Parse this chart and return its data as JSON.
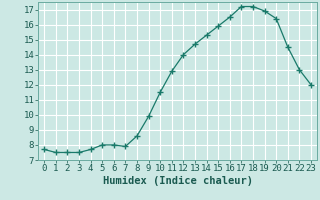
{
  "xlabel": "Humidex (Indice chaleur)",
  "x": [
    0,
    1,
    2,
    3,
    4,
    5,
    6,
    7,
    8,
    9,
    10,
    11,
    12,
    13,
    14,
    15,
    16,
    17,
    18,
    19,
    20,
    21,
    22,
    23
  ],
  "y": [
    7.7,
    7.5,
    7.5,
    7.5,
    7.7,
    8.0,
    8.0,
    7.9,
    8.6,
    9.9,
    11.5,
    12.9,
    14.0,
    14.7,
    15.3,
    15.9,
    16.5,
    17.2,
    17.2,
    16.9,
    16.4,
    14.5,
    13.0,
    12.0
  ],
  "line_color": "#1a7a6a",
  "marker": "+",
  "marker_size": 4,
  "bg_color": "#cce8e4",
  "grid_color": "#ffffff",
  "spine_color": "#6aaba0",
  "tick_color": "#1a5a50",
  "ylim": [
    7,
    17.5
  ],
  "xlim": [
    -0.5,
    23.5
  ],
  "yticks": [
    7,
    8,
    9,
    10,
    11,
    12,
    13,
    14,
    15,
    16,
    17
  ],
  "xticks": [
    0,
    1,
    2,
    3,
    4,
    5,
    6,
    7,
    8,
    9,
    10,
    11,
    12,
    13,
    14,
    15,
    16,
    17,
    18,
    19,
    20,
    21,
    22,
    23
  ],
  "tick_label_fontsize": 6.5,
  "xlabel_fontsize": 7.5
}
